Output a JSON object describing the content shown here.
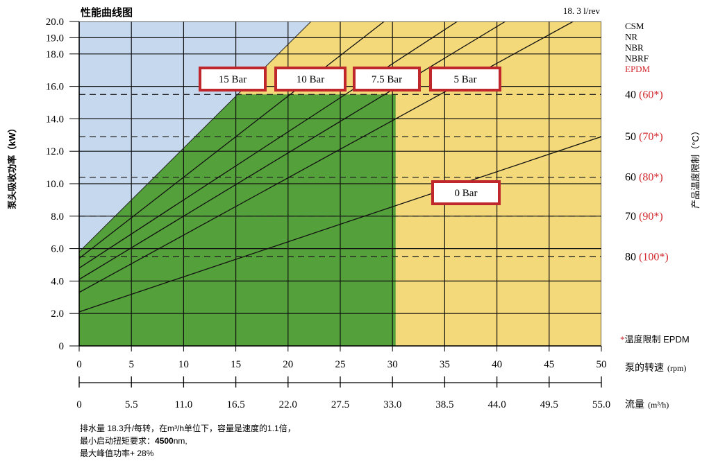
{
  "chart_data": {
    "type": "line",
    "title": "性能曲线图",
    "displacement_label": "18. 3 l/rev",
    "ylabel": "泵头吸收功率（kW）",
    "ylim": [
      0,
      20
    ],
    "y_ticks": [
      "0",
      "2.0",
      "4.0",
      "6.0",
      "8.0",
      "10.0",
      "12.0",
      "14.0",
      "16.0",
      "18.0",
      "19.0",
      "20.0"
    ],
    "y_tick_values": [
      0,
      2,
      4,
      6,
      8,
      10,
      12,
      14,
      16,
      18,
      19,
      20
    ],
    "xlim": [
      0,
      50
    ],
    "x_ticks": [
      "0",
      "5",
      "10",
      "15",
      "20",
      "25",
      "30",
      "35",
      "40",
      "45",
      "50"
    ],
    "x_tick_values": [
      0,
      5,
      10,
      15,
      20,
      25,
      30,
      35,
      40,
      45,
      50
    ],
    "xlabel": "泵的转速",
    "xlabel_unit": "(rpm)",
    "flow_ticks": [
      "0",
      "5.5",
      "11.0",
      "16.5",
      "22.0",
      "27.5",
      "33.0",
      "38.5",
      "44.0",
      "49.5",
      "55.0"
    ],
    "flow_label": "流量",
    "flow_unit": "(m³/h)",
    "max_power_boundary": [
      [
        0,
        5.8
      ],
      [
        22.2,
        20
      ]
    ],
    "green_region": {
      "x_max": 30.3,
      "y_max": 15.5
    },
    "series": [
      {
        "name": "0 Bar",
        "x": [
          0,
          50
        ],
        "y": [
          2.1,
          12.9
        ]
      },
      {
        "name": "5 Bar",
        "x": [
          0,
          47.3
        ],
        "y": [
          3.3,
          20
        ]
      },
      {
        "name": "7.5 Bar",
        "x": [
          0,
          40.8
        ],
        "y": [
          4.1,
          20
        ]
      },
      {
        "name": "10 Bar",
        "x": [
          0,
          36.2
        ],
        "y": [
          4.8,
          20
        ]
      },
      {
        "name": "15 Bar",
        "x": [
          0,
          29.2
        ],
        "y": [
          5.4,
          20
        ]
      }
    ],
    "temperature_limits": [
      {
        "value": 15.5,
        "label": "40",
        "epdm": "(60*)"
      },
      {
        "value": 12.9,
        "label": "50",
        "epdm": "(70*)"
      },
      {
        "value": 10.4,
        "label": "60",
        "epdm": "(80*)"
      },
      {
        "value": 8.0,
        "label": "70",
        "epdm": "(90*)"
      },
      {
        "value": 5.5,
        "label": "80",
        "epdm": "(100*)"
      }
    ],
    "temperature_axis_label": "产品温度限制（°C）",
    "materials": [
      "CSM",
      "NR",
      "NBR",
      "NBRF",
      "EPDM"
    ],
    "footnote_star": "*",
    "footnote_text": "温度限制 EPDM",
    "colors": {
      "blue_region": "#c6d8ee",
      "yellow_region": "#f3d979",
      "green_region": "#54a03a",
      "label_border": "#c0272d",
      "epdm_red": "#d2282e",
      "grid": "#000000"
    }
  },
  "notes": [
    {
      "prefix": "排水量 18.3升/每转，在m³/h单位下，容量是速度的1.1倍，"
    },
    {
      "prefix": "最小启动扭矩要求：",
      "bold": "4500",
      "suffix": "nm,"
    },
    {
      "prefix": "最大峰值功率+ 28%"
    }
  ]
}
